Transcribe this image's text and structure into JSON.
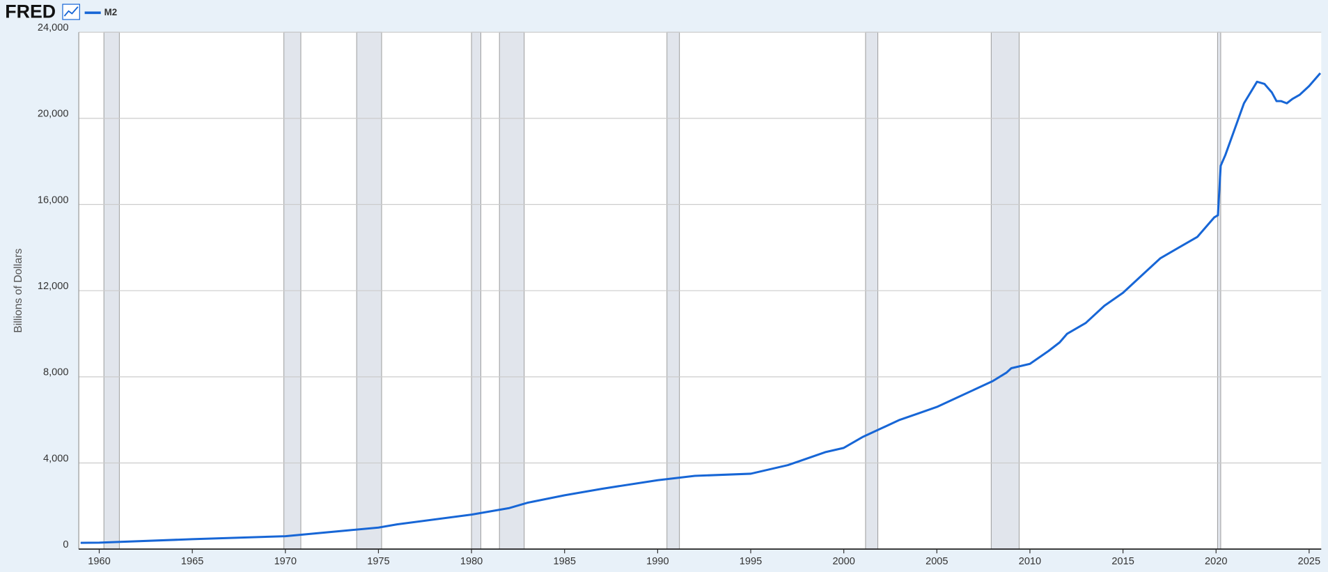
{
  "header": {
    "logo": "FRED"
  },
  "chart_data": {
    "type": "line",
    "y_label": "Billions of Dollars",
    "series": [
      {
        "name": "M2",
        "color": "#1766d6",
        "x": [
          1959,
          1960,
          1965,
          1970,
          1971,
          1975,
          1976,
          1980,
          1982,
          1983,
          1985,
          1987,
          1990,
          1992,
          1995,
          1997,
          1999,
          2000,
          2001,
          2002,
          2003,
          2004,
          2005,
          2006,
          2007,
          2008,
          2008.75,
          2009,
          2010,
          2011,
          2011.6,
          2012,
          2013,
          2014,
          2015,
          2016,
          2017,
          2018,
          2019,
          2019.9,
          2020.1,
          2020.25,
          2020.5,
          2021,
          2021.5,
          2022.2,
          2022.6,
          2023,
          2023.25,
          2023.5,
          2023.8,
          2024.1,
          2024.5,
          2025,
          2025.6
        ],
        "values": [
          290,
          300,
          460,
          600,
          680,
          1000,
          1150,
          1600,
          1900,
          2150,
          2500,
          2800,
          3200,
          3400,
          3500,
          3900,
          4500,
          4700,
          5200,
          5600,
          6000,
          6300,
          6600,
          7000,
          7400,
          7800,
          8200,
          8400,
          8600,
          9200,
          9600,
          10000,
          10500,
          11300,
          11900,
          12700,
          13500,
          14000,
          14500,
          15400,
          15500,
          17800,
          18300,
          19500,
          20700,
          21700,
          21600,
          21200,
          20800,
          20800,
          20700,
          20900,
          21100,
          21500,
          22100
        ]
      }
    ],
    "recessions": [
      [
        1960.25,
        1961.08
      ],
      [
        1969.92,
        1970.83
      ],
      [
        1973.83,
        1975.17
      ],
      [
        1980.0,
        1980.5
      ],
      [
        1981.5,
        1982.83
      ],
      [
        1990.5,
        1991.17
      ],
      [
        2001.17,
        2001.83
      ],
      [
        2007.92,
        2009.42
      ],
      [
        2020.08,
        2020.25
      ]
    ],
    "xlim": [
      1958.9,
      2025.65
    ],
    "xticks": [
      1960,
      1965,
      1970,
      1975,
      1980,
      1985,
      1990,
      1995,
      2000,
      2005,
      2010,
      2015,
      2020,
      2025
    ],
    "ylim": [
      0,
      24000
    ],
    "yticks": [
      0,
      {
        "value": 4000,
        "label": "4,000"
      },
      {
        "value": 8000,
        "label": "8,000"
      },
      {
        "value": 12000,
        "label": "12,000"
      },
      {
        "value": 16000,
        "label": "16,000"
      },
      {
        "value": 20000,
        "label": "20,000"
      },
      {
        "value": 24000,
        "label": "24,000"
      }
    ],
    "grid": true
  }
}
